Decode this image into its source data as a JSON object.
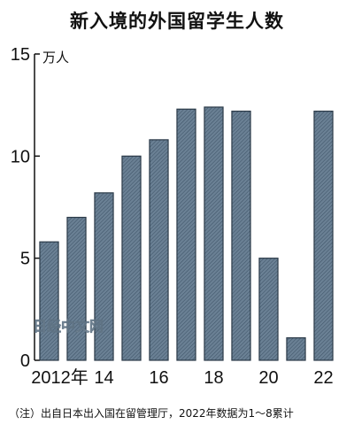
{
  "chart_data": {
    "type": "bar",
    "title": "新入境的外国留学生人数",
    "ylabel": "万人",
    "categories": [
      "2012",
      "2013",
      "2014",
      "2015",
      "2016",
      "2017",
      "2018",
      "2019",
      "2020",
      "2021",
      "2022"
    ],
    "values": [
      5.8,
      7.0,
      8.2,
      10.0,
      10.8,
      12.3,
      12.4,
      12.2,
      5.0,
      1.1,
      12.2
    ],
    "xticks": [
      {
        "category": "2012",
        "label": "2012年"
      },
      {
        "category": "2014",
        "label": "14"
      },
      {
        "category": "2016",
        "label": "16"
      },
      {
        "category": "2018",
        "label": "18"
      },
      {
        "category": "2020",
        "label": "20"
      },
      {
        "category": "2022",
        "label": "22"
      }
    ],
    "yticks": [
      0,
      5,
      10,
      15
    ],
    "ylim": [
      0,
      15
    ],
    "grid": false,
    "bar_color": "#5b7288",
    "note": "（注）出自日本出入国在留管理厅，2022年数据为1～8累计"
  },
  "watermark": "日经中文网"
}
